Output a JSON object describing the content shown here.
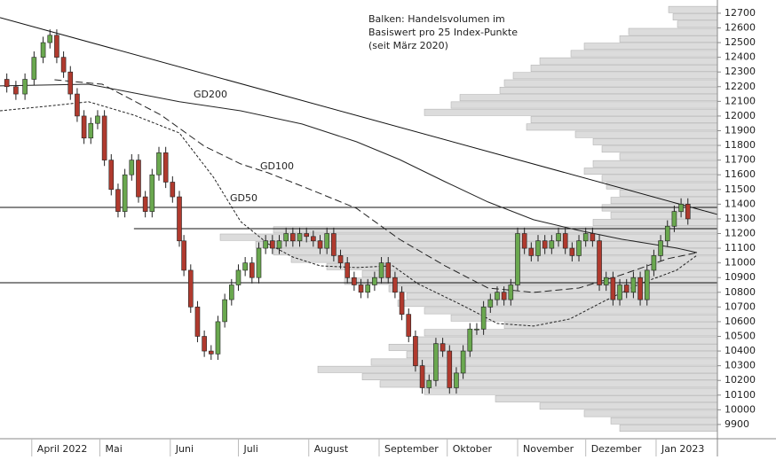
{
  "chart_data": {
    "type": "candlestick",
    "annotation": [
      "Balken: Handelsvolumen im",
      "Basiswert pro 25 Index-Punkte",
      "(seit März 2020)"
    ],
    "xlim": [
      77,
      393
    ],
    "xticks": [
      {
        "value": 91,
        "label": "April 2022"
      },
      {
        "value": 121,
        "label": "Mai"
      },
      {
        "value": 152,
        "label": "Juni"
      },
      {
        "value": 182,
        "label": "Juli"
      },
      {
        "value": 213,
        "label": "August"
      },
      {
        "value": 244,
        "label": "September"
      },
      {
        "value": 274,
        "label": "Oktober"
      },
      {
        "value": 305,
        "label": "November"
      },
      {
        "value": 335,
        "label": "Dezember"
      },
      {
        "value": 366,
        "label": "Jan 2023"
      }
    ],
    "ylim": [
      9803,
      12790
    ],
    "yticks": [
      9900,
      10000,
      10100,
      10200,
      10300,
      10400,
      10500,
      10600,
      10700,
      10800,
      10900,
      11000,
      11100,
      11200,
      11300,
      11400,
      11500,
      11600,
      11700,
      11800,
      11900,
      12000,
      12100,
      12200,
      12300,
      12400,
      12500,
      12600,
      12700
    ],
    "up_color": "#6aa84f",
    "down_color": "#b03a2e",
    "x": [
      80,
      84,
      88,
      92,
      96,
      99,
      102,
      105,
      108,
      111,
      114,
      117,
      120,
      123,
      126,
      129,
      132,
      135,
      138,
      141,
      144,
      147,
      150,
      153,
      156,
      158,
      161,
      164,
      167,
      170,
      173,
      176,
      179,
      182,
      185,
      188,
      191,
      194,
      197,
      200,
      203,
      206,
      209,
      212,
      215,
      218,
      221,
      224,
      227,
      230,
      233,
      236,
      239,
      242,
      245,
      248,
      251,
      254,
      257,
      260,
      263,
      266,
      269,
      272,
      275,
      278,
      281,
      284,
      287,
      290,
      293,
      296,
      299,
      302,
      305,
      308,
      311,
      314,
      317,
      320,
      323,
      326,
      329,
      332,
      335,
      338,
      341,
      344,
      347,
      350,
      353,
      356,
      359,
      362,
      365,
      368,
      371,
      374,
      377,
      380
    ],
    "open": [
      12250,
      12200,
      12150,
      12250,
      12400,
      12500,
      12550,
      12400,
      12300,
      12150,
      12000,
      11850,
      11950,
      12000,
      11700,
      11500,
      11350,
      11600,
      11700,
      11450,
      11350,
      11600,
      11750,
      11550,
      11450,
      11150,
      10950,
      10700,
      10500,
      10400,
      10380,
      10600,
      10750,
      10850,
      10950,
      11000,
      10900,
      11100,
      11150,
      11100,
      11150,
      11200,
      11150,
      11200,
      11180,
      11150,
      11100,
      11200,
      11050,
      11000,
      10900,
      10850,
      10800,
      10850,
      10900,
      11000,
      10900,
      10800,
      10650,
      10500,
      10300,
      10150,
      10200,
      10450,
      10400,
      10150,
      10250,
      10400,
      10550,
      10550,
      10700,
      10750,
      10800,
      10750,
      10850,
      11200,
      11100,
      11050,
      11150,
      11100,
      11150,
      11200,
      11100,
      11050,
      11150,
      11200,
      11150,
      10850,
      10900,
      10750,
      10850,
      10800,
      10900,
      10750,
      10950,
      11050,
      11150,
      11250,
      11350,
      11400
    ],
    "high": [
      12290,
      12240,
      12290,
      12440,
      12540,
      12590,
      12590,
      12440,
      12340,
      12190,
      12040,
      11990,
      12040,
      12040,
      11740,
      11540,
      11640,
      11740,
      11740,
      11490,
      11640,
      11790,
      11790,
      11590,
      11490,
      11190,
      10990,
      10740,
      10540,
      10440,
      10640,
      10790,
      10890,
      10990,
      11040,
      11040,
      11140,
      11190,
      11190,
      11190,
      11240,
      11240,
      11240,
      11240,
      11220,
      11190,
      11240,
      11240,
      11090,
      11040,
      10940,
      10890,
      10890,
      10940,
      11040,
      11040,
      10940,
      10840,
      10690,
      10540,
      10340,
      10240,
      10490,
      10490,
      10440,
      10290,
      10440,
      10590,
      10590,
      10740,
      10790,
      10840,
      10840,
      10890,
      11240,
      11240,
      11140,
      11190,
      11190,
      11190,
      11240,
      11240,
      11140,
      11190,
      11240,
      11240,
      11190,
      10940,
      10940,
      10890,
      10890,
      10940,
      10940,
      10990,
      11090,
      11190,
      11290,
      11390,
      11440,
      11440
    ],
    "low": [
      12160,
      12110,
      12110,
      12210,
      12360,
      12460,
      12360,
      12260,
      12110,
      11960,
      11810,
      11810,
      11910,
      11660,
      11460,
      11310,
      11310,
      11560,
      11410,
      11310,
      11310,
      11560,
      11510,
      11410,
      11110,
      10910,
      10660,
      10460,
      10360,
      10340,
      10340,
      10560,
      10710,
      10810,
      10910,
      10860,
      10860,
      11060,
      11060,
      11060,
      11110,
      11110,
      11110,
      11140,
      11110,
      11060,
      11060,
      11010,
      10960,
      10860,
      10810,
      10760,
      10760,
      10810,
      10860,
      10860,
      10760,
      10610,
      10460,
      10260,
      10110,
      10110,
      10160,
      10360,
      10110,
      10110,
      10210,
      10360,
      10510,
      10510,
      10660,
      10710,
      10710,
      10710,
      10810,
      11060,
      11010,
      11010,
      11060,
      11060,
      11110,
      11060,
      11010,
      11010,
      11110,
      11110,
      10810,
      10810,
      10710,
      10710,
      10760,
      10760,
      10710,
      10710,
      10910,
      11010,
      11110,
      11210,
      11310,
      11260
    ],
    "close": [
      12200,
      12150,
      12250,
      12400,
      12500,
      12550,
      12400,
      12300,
      12150,
      12000,
      11850,
      11950,
      12000,
      11700,
      11500,
      11350,
      11600,
      11700,
      11450,
      11350,
      11600,
      11750,
      11550,
      11450,
      11150,
      10950,
      10700,
      10500,
      10400,
      10380,
      10600,
      10750,
      10850,
      10950,
      11000,
      10900,
      11100,
      11150,
      11100,
      11150,
      11200,
      11150,
      11200,
      11180,
      11150,
      11100,
      11200,
      11050,
      11000,
      10900,
      10850,
      10800,
      10850,
      10900,
      11000,
      10900,
      10800,
      10650,
      10500,
      10300,
      10150,
      10200,
      10450,
      10400,
      10150,
      10250,
      10400,
      10550,
      10550,
      10700,
      10750,
      10800,
      10750,
      10850,
      11200,
      11100,
      11050,
      11150,
      11100,
      11150,
      11200,
      11100,
      11050,
      11150,
      11200,
      11150,
      10850,
      10900,
      10750,
      10850,
      10800,
      10900,
      10750,
      10950,
      11050,
      11150,
      11250,
      11350,
      11400,
      11300
    ],
    "volume_profile": {
      "color": "#dcdcdc",
      "levels": [
        12700,
        12650,
        12600,
        12550,
        12500,
        12450,
        12400,
        12350,
        12300,
        12250,
        12200,
        12150,
        12100,
        12050,
        12000,
        11950,
        11900,
        11850,
        11800,
        11750,
        11700,
        11650,
        11600,
        11550,
        11500,
        11450,
        11400,
        11350,
        11300,
        11250,
        11200,
        11150,
        11100,
        11050,
        11000,
        10950,
        10900,
        10850,
        10800,
        10750,
        10700,
        10650,
        10600,
        10550,
        10500,
        10450,
        10400,
        10350,
        10300,
        10250,
        10200,
        10150,
        10100,
        10050,
        10000,
        9950,
        9900,
        9850
      ],
      "values": [
        55,
        50,
        45,
        100,
        110,
        150,
        165,
        200,
        210,
        230,
        240,
        245,
        290,
        300,
        330,
        210,
        215,
        160,
        140,
        130,
        110,
        140,
        150,
        130,
        125,
        110,
        120,
        130,
        120,
        140,
        500,
        560,
        520,
        500,
        480,
        440,
        400,
        420,
        370,
        350,
        360,
        330,
        300,
        240,
        330,
        340,
        370,
        350,
        390,
        450,
        400,
        380,
        330,
        250,
        200,
        150,
        120,
        110
      ]
    },
    "lines": [
      {
        "name": "GD200",
        "dash": "none",
        "x": [
          77,
          116,
          136,
          156,
          183,
          210,
          234,
          253,
          273,
          292,
          312,
          332,
          351,
          375,
          384
        ],
        "values": [
          12205,
          12217,
          12157,
          12097,
          12036,
          11946,
          11825,
          11704,
          11553,
          11415,
          11294,
          11221,
          11161,
          11101,
          11070
        ]
      },
      {
        "name": "GD100",
        "dash": "8,4",
        "x": [
          101,
          122,
          148,
          167,
          183,
          195,
          210,
          234,
          253,
          273,
          292,
          312,
          332,
          351,
          371,
          384
        ],
        "values": [
          12247,
          12217,
          12006,
          11795,
          11674,
          11614,
          11523,
          11372,
          11161,
          10980,
          10829,
          10799,
          10829,
          10920,
          11028,
          11070
        ]
      },
      {
        "name": "GD50",
        "dash": "3,2",
        "x": [
          77,
          97,
          116,
          136,
          156,
          171,
          183,
          195,
          206,
          218,
          234,
          250,
          261,
          281,
          296,
          312,
          328,
          343,
          359,
          375,
          384
        ],
        "values": [
          12036,
          12066,
          12097,
          12006,
          11885,
          11584,
          11282,
          11131,
          11040,
          10980,
          10968,
          10980,
          10859,
          10709,
          10588,
          10570,
          10618,
          10739,
          10859,
          10950,
          11052
        ]
      }
    ],
    "trendline": {
      "x": [
        77,
        393
      ],
      "values": [
        12670,
        11330
      ]
    },
    "hlines": [
      {
        "value": 11378,
        "x_from": 77
      },
      {
        "value": 11233,
        "x_from": 136
      },
      {
        "value": 10865,
        "x_from": 77
      }
    ]
  }
}
